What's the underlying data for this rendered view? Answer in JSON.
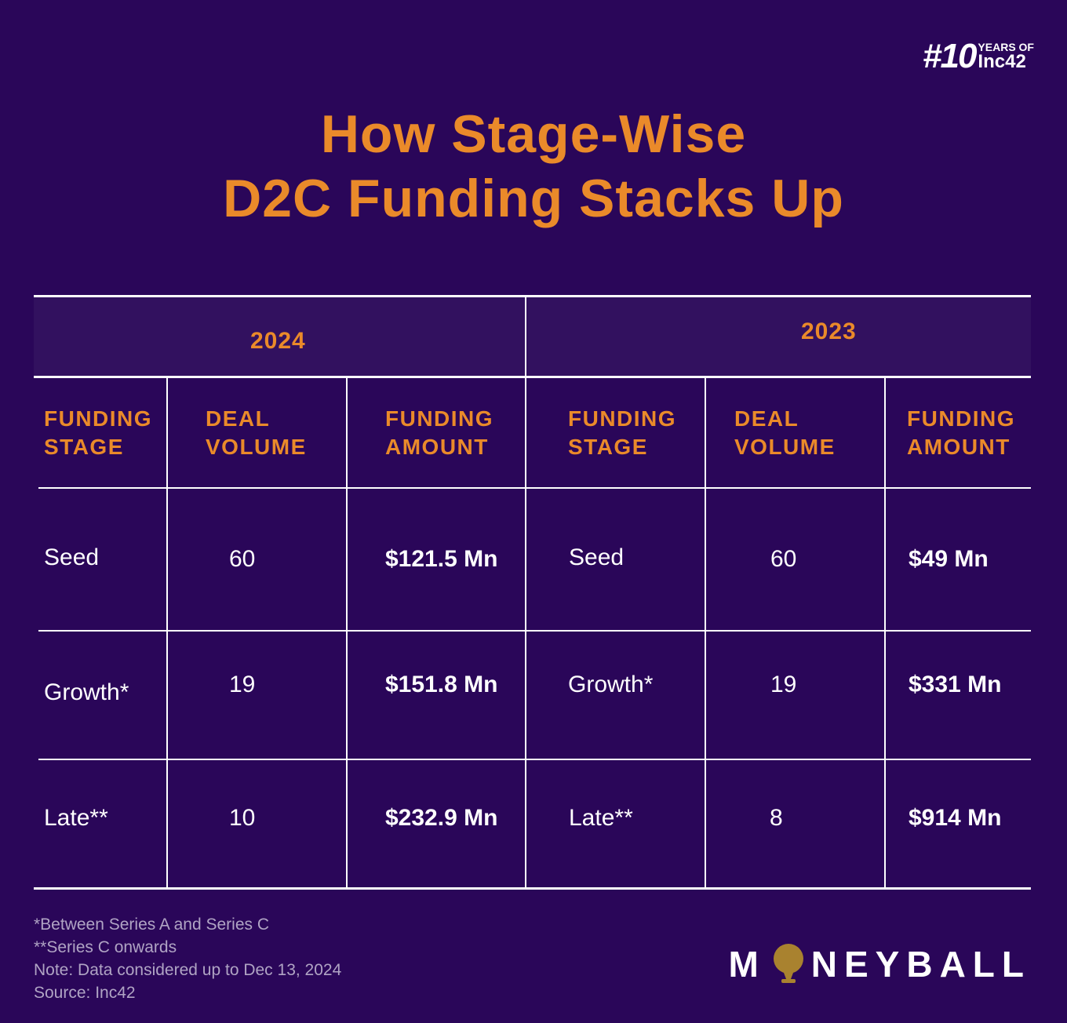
{
  "badge": {
    "hash": "#10",
    "years": "YEARS OF",
    "brand": "Inc42"
  },
  "title_line1": "How Stage-Wise",
  "title_line2": "D2C Funding Stacks Up",
  "chart_data": {
    "type": "table",
    "groups": [
      "2024",
      "2023"
    ],
    "columns": [
      "FUNDING\nSTAGE",
      "DEAL\nVOLUME",
      "FUNDING\nAMOUNT"
    ],
    "rows_2024": [
      {
        "stage": "Seed",
        "volume": "60",
        "amount": "$121.5 Mn"
      },
      {
        "stage": "Growth*",
        "volume": "19",
        "amount": "$151.8 Mn"
      },
      {
        "stage": "Late**",
        "volume": "10",
        "amount": "$232.9 Mn"
      }
    ],
    "rows_2023": [
      {
        "stage": "Seed",
        "volume": "60",
        "amount": "$49 Mn"
      },
      {
        "stage": "Growth*",
        "volume": "19",
        "amount": "$331 Mn"
      },
      {
        "stage": "Late**",
        "volume": "8",
        "amount": "$914 Mn"
      }
    ]
  },
  "notes": [
    "*Between Series A and Series C",
    "**Series C onwards",
    "Note: Data considered up to Dec 13, 2024",
    "Source: Inc42"
  ],
  "footer_brand": {
    "left": "M",
    "right": "NEYBALL"
  },
  "colors": {
    "background": "#2a0659",
    "accent": "#ea8a2a",
    "text": "#ffffff"
  }
}
